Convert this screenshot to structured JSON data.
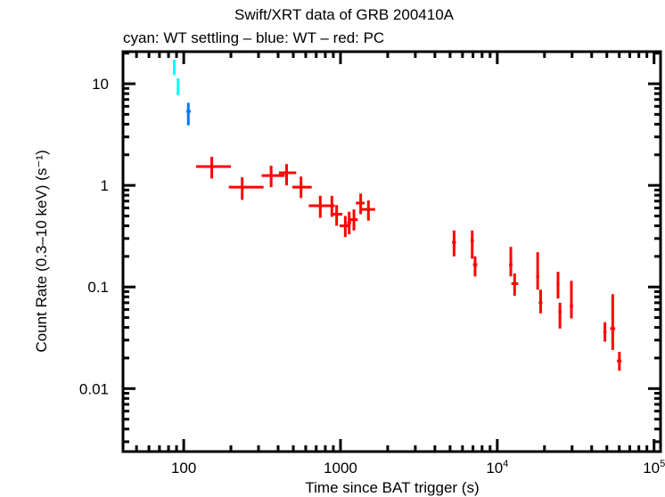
{
  "chart_data": {
    "type": "scatter",
    "title": "Swift/XRT data of GRB 200410A",
    "subtitle": "cyan: WT settling – blue: WT – red: PC",
    "xlabel": "Time since BAT trigger (s)",
    "ylabel": "Count Rate (0.3–10 keV) (s⁻¹)",
    "xscale": "log",
    "yscale": "log",
    "xlim": [
      41,
      110000
    ],
    "ylim": [
      0.0024,
      20.7
    ],
    "x_ticks": [
      {
        "value": 100,
        "label": "100"
      },
      {
        "value": 1000,
        "label": "1000"
      },
      {
        "value": 10000,
        "label": "10",
        "sup": "4"
      },
      {
        "value": 100000,
        "label": "10",
        "sup": "5"
      }
    ],
    "y_ticks": [
      {
        "value": 10,
        "label": "10"
      },
      {
        "value": 1,
        "label": "1"
      },
      {
        "value": 0.1,
        "label": "0.1"
      },
      {
        "value": 0.01,
        "label": "0.01"
      }
    ],
    "series": [
      {
        "name": "WT settling",
        "color": "#00ffff",
        "points": [
          {
            "x": 87,
            "xlo": 86,
            "xhi": 88,
            "y": 14.7,
            "ylo": 12.2,
            "yhi": 17.2
          },
          {
            "x": 92,
            "xlo": 91,
            "xhi": 93,
            "y": 9.4,
            "ylo": 7.7,
            "yhi": 11.3
          }
        ]
      },
      {
        "name": "WT",
        "color": "#0077ff",
        "points": [
          {
            "x": 107,
            "xlo": 104,
            "xhi": 111,
            "y": 5.35,
            "ylo": 3.9,
            "yhi": 6.5
          }
        ]
      },
      {
        "name": "PC",
        "color": "#ff0000",
        "points": [
          {
            "x": 151,
            "xlo": 120,
            "xhi": 200,
            "y": 1.53,
            "ylo": 1.17,
            "yhi": 1.91
          },
          {
            "x": 236,
            "xlo": 194,
            "xhi": 323,
            "y": 0.96,
            "ylo": 0.72,
            "yhi": 1.2
          },
          {
            "x": 361,
            "xlo": 314,
            "xhi": 441,
            "y": 1.25,
            "ylo": 0.96,
            "yhi": 1.56
          },
          {
            "x": 453,
            "xlo": 405,
            "xhi": 522,
            "y": 1.33,
            "ylo": 1.0,
            "yhi": 1.62
          },
          {
            "x": 560,
            "xlo": 493,
            "xhi": 655,
            "y": 0.96,
            "ylo": 0.75,
            "yhi": 1.22
          },
          {
            "x": 743,
            "xlo": 628,
            "xhi": 869,
            "y": 0.63,
            "ylo": 0.48,
            "yhi": 0.79
          },
          {
            "x": 881,
            "xlo": 844,
            "xhi": 919,
            "y": 0.63,
            "ylo": 0.49,
            "yhi": 0.79
          },
          {
            "x": 945,
            "xlo": 893,
            "xhi": 1029,
            "y": 0.52,
            "ylo": 0.4,
            "yhi": 0.64
          },
          {
            "x": 1073,
            "xlo": 987,
            "xhi": 1151,
            "y": 0.4,
            "ylo": 0.31,
            "yhi": 0.5
          },
          {
            "x": 1136,
            "xlo": 1104,
            "xhi": 1168,
            "y": 0.43,
            "ylo": 0.33,
            "yhi": 0.55
          },
          {
            "x": 1218,
            "xlo": 1151,
            "xhi": 1289,
            "y": 0.46,
            "ylo": 0.36,
            "yhi": 0.58
          },
          {
            "x": 1345,
            "xlo": 1254,
            "xhi": 1423,
            "y": 0.67,
            "ylo": 0.52,
            "yhi": 0.83
          },
          {
            "x": 1507,
            "xlo": 1365,
            "xhi": 1663,
            "y": 0.58,
            "ylo": 0.45,
            "yhi": 0.71
          },
          {
            "x": 5300,
            "xlo": 5150,
            "xhi": 5450,
            "y": 0.275,
            "ylo": 0.2,
            "yhi": 0.36
          },
          {
            "x": 6920,
            "xlo": 6750,
            "xhi": 7100,
            "y": 0.286,
            "ylo": 0.19,
            "yhi": 0.36
          },
          {
            "x": 7220,
            "xlo": 7000,
            "xhi": 7450,
            "y": 0.166,
            "ylo": 0.127,
            "yhi": 0.2
          },
          {
            "x": 12200,
            "xlo": 11900,
            "xhi": 12500,
            "y": 0.166,
            "ylo": 0.127,
            "yhi": 0.248
          },
          {
            "x": 12900,
            "xlo": 12300,
            "xhi": 13600,
            "y": 0.108,
            "ylo": 0.082,
            "yhi": 0.136
          },
          {
            "x": 18100,
            "xlo": 17700,
            "xhi": 18500,
            "y": 0.127,
            "ylo": 0.094,
            "yhi": 0.22
          },
          {
            "x": 18900,
            "xlo": 18400,
            "xhi": 19400,
            "y": 0.07,
            "ylo": 0.055,
            "yhi": 0.094
          },
          {
            "x": 24400,
            "xlo": 23900,
            "xhi": 24900,
            "y": 0.108,
            "ylo": 0.077,
            "yhi": 0.141
          },
          {
            "x": 25100,
            "xlo": 24500,
            "xhi": 25700,
            "y": 0.057,
            "ylo": 0.039,
            "yhi": 0.07
          },
          {
            "x": 29700,
            "xlo": 29000,
            "xhi": 30400,
            "y": 0.065,
            "ylo": 0.049,
            "yhi": 0.115
          },
          {
            "x": 48600,
            "xlo": 47500,
            "xhi": 49700,
            "y": 0.036,
            "ylo": 0.029,
            "yhi": 0.045
          },
          {
            "x": 54500,
            "xlo": 52500,
            "xhi": 56500,
            "y": 0.039,
            "ylo": 0.024,
            "yhi": 0.085
          },
          {
            "x": 60100,
            "xlo": 58000,
            "xhi": 62000,
            "y": 0.0187,
            "ylo": 0.015,
            "yhi": 0.023
          }
        ]
      }
    ],
    "grid": false,
    "legend": "none"
  }
}
